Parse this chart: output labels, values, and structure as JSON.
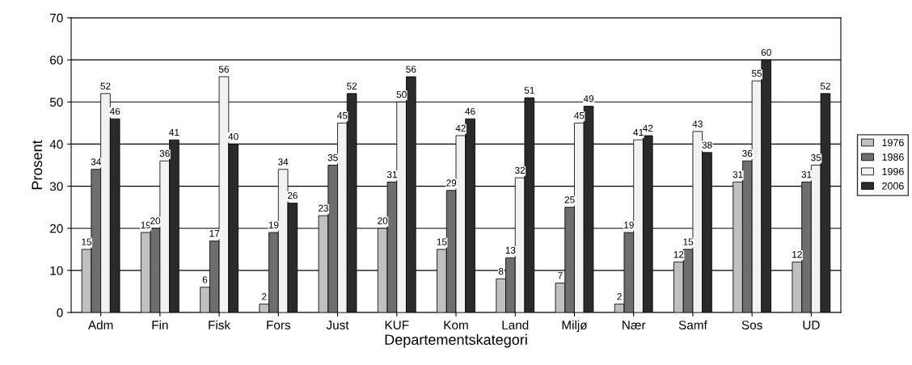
{
  "chart_data": {
    "type": "bar",
    "xlabel": "Departementskategori",
    "ylabel": "Prosent",
    "categories": [
      "Adm",
      "Fin",
      "Fisk",
      "Fors",
      "Just",
      "KUF",
      "Kom",
      "Land",
      "Miljø",
      "Nær",
      "Samf",
      "Sos",
      "UD"
    ],
    "series": [
      {
        "name": "1976",
        "color": "#c0c0c0",
        "values": [
          15,
          19,
          6,
          2,
          23,
          20,
          15,
          8,
          7,
          2,
          12,
          31,
          12
        ]
      },
      {
        "name": "1986",
        "color": "#6e6e6e",
        "values": [
          34,
          20,
          17,
          19,
          35,
          31,
          29,
          13,
          25,
          19,
          15,
          36,
          31
        ]
      },
      {
        "name": "1996",
        "color": "#f2f2f2",
        "values": [
          52,
          36,
          56,
          34,
          45,
          50,
          42,
          32,
          45,
          41,
          43,
          55,
          35
        ]
      },
      {
        "name": "2006",
        "color": "#2a2a2a",
        "values": [
          46,
          41,
          40,
          26,
          52,
          56,
          46,
          51,
          49,
          42,
          38,
          60,
          52
        ]
      }
    ],
    "ylim": [
      0,
      70
    ],
    "yticks": [
      0,
      10,
      20,
      30,
      40,
      50,
      60,
      70
    ],
    "grid": "y",
    "legend": "right",
    "data_labels": true
  }
}
